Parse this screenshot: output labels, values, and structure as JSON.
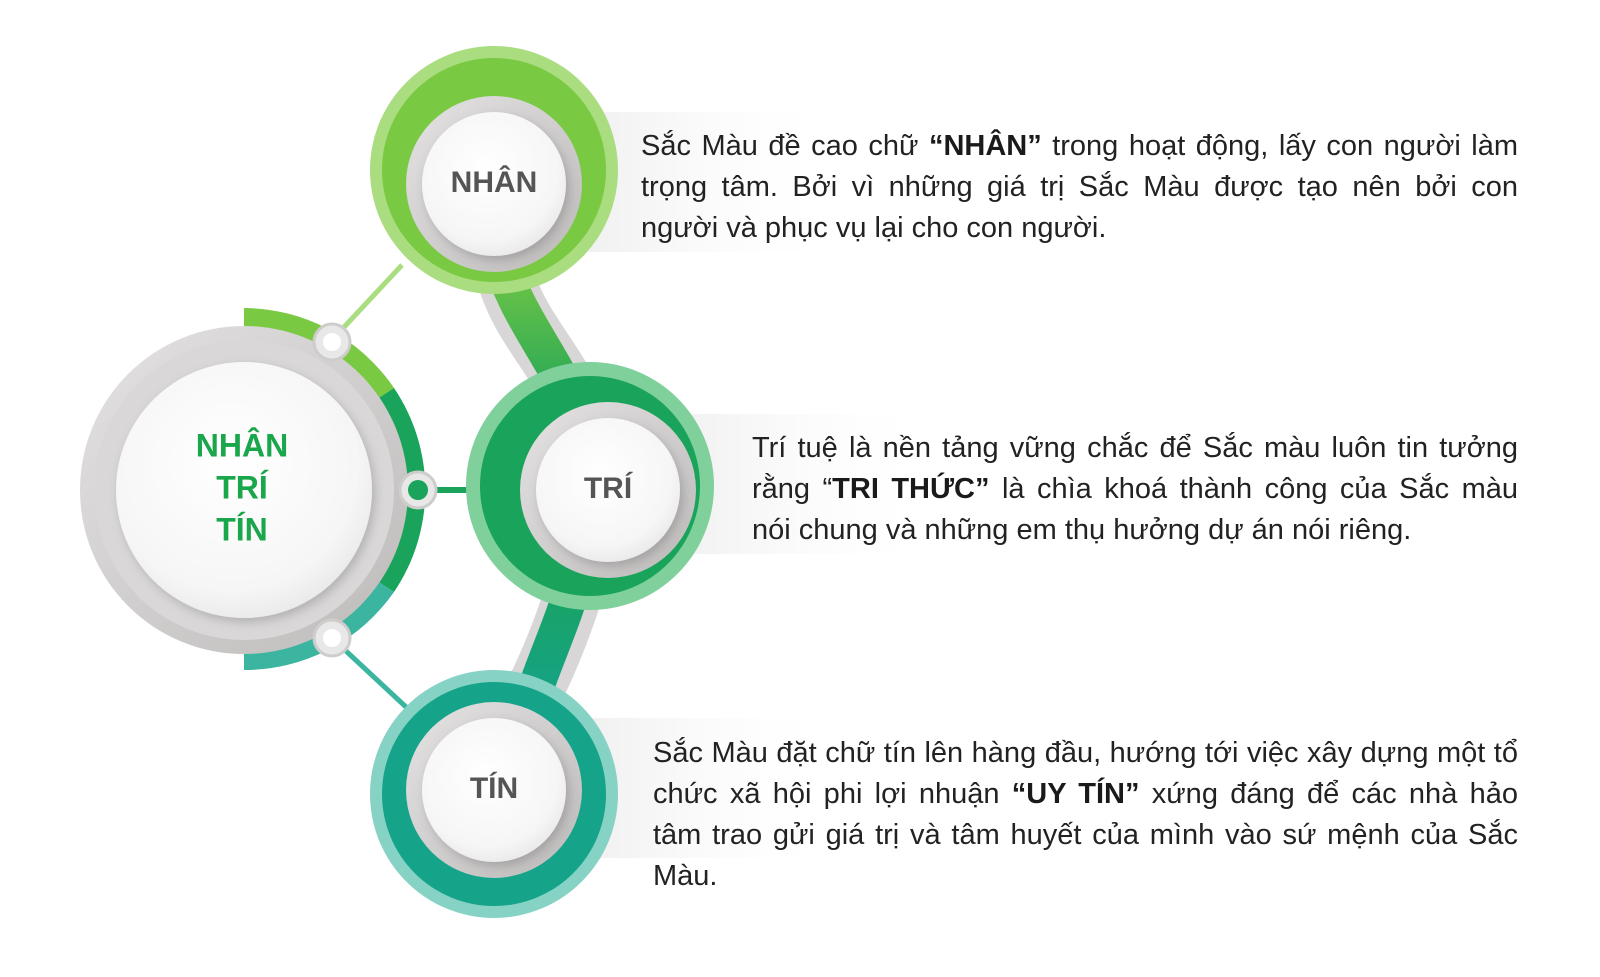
{
  "colors": {
    "light_green": "#7ac943",
    "mid_green": "#39b54a",
    "green": "#1aa35a",
    "teal": "#15a38a",
    "center_text": "#1aa64a",
    "node_text": "#555555",
    "grey_ring": "#cfcccc"
  },
  "center": {
    "line1": "NHÂN",
    "line2": "TRÍ",
    "line3": "TÍN"
  },
  "nodes": {
    "nhan": "NHÂN",
    "tri": "TRÍ",
    "tin": "TÍN"
  },
  "panels": {
    "nhan": {
      "before": "Sắc Màu đề cao chữ ",
      "bold": "“NHÂN”",
      "after": " trong hoạt động, lấy con người làm trọng tâm. Bởi vì những giá trị Sắc Màu được tạo nên bởi con người và phục vụ lại cho con người."
    },
    "tri": {
      "before": "Trí tuệ là nền tảng vững chắc để Sắc màu luôn tin tưởng rằng “",
      "bold": "TRI THỨC”",
      "after": " là chìa khoá thành công của Sắc màu nói chung và những em thụ hưởng dự án nói riêng."
    },
    "tin": {
      "before": "Sắc Màu đặt chữ tín lên hàng đầu, hướng tới việc xây dựng một tổ chức xã hội phi lợi nhuận ",
      "bold": "“UY TÍN”",
      "after": " xứng đáng để các nhà hảo tâm trao gửi giá trị và tâm huyết của mình vào sứ mệnh của Sắc Màu."
    }
  }
}
